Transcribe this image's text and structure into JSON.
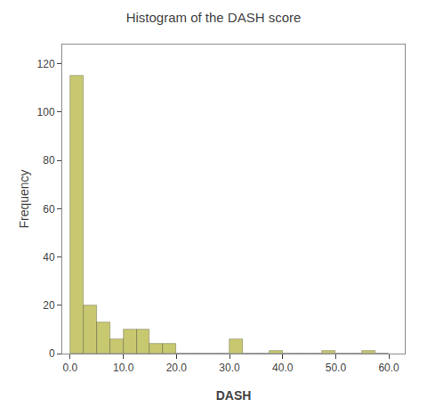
{
  "chart_data": {
    "type": "histogram",
    "title": "Histogram of the DASH score",
    "xlabel": "DASH",
    "ylabel": "Frequency",
    "color": "#c8c870",
    "bins": [
      0,
      2.5,
      5.0,
      7.5,
      10.0,
      12.5,
      15.0,
      17.5,
      20.0,
      22.5,
      25.0,
      27.5,
      30.0,
      32.5,
      35.0,
      37.5,
      40.0,
      42.5,
      45.0,
      47.5,
      50.0,
      52.5,
      55.0,
      57.5,
      60.0
    ],
    "counts": [
      115,
      20,
      13,
      6,
      10,
      10,
      4,
      4,
      0,
      0,
      0,
      0,
      6,
      0,
      0,
      1,
      0,
      0,
      0,
      1,
      0,
      0,
      1,
      0
    ],
    "xlim": [
      -1.5,
      63
    ],
    "ylim": [
      0,
      128
    ],
    "xticks": [
      {
        "value": 0,
        "label": "0.0"
      },
      {
        "value": 10,
        "label": "10.0"
      },
      {
        "value": 20,
        "label": "20.0"
      },
      {
        "value": 30,
        "label": "30.0"
      },
      {
        "value": 40,
        "label": "40.0"
      },
      {
        "value": 50,
        "label": "50.0"
      },
      {
        "value": 60,
        "label": "60.0"
      }
    ],
    "yticks": [
      0,
      20,
      40,
      60,
      80,
      100,
      120
    ],
    "grid": false
  }
}
